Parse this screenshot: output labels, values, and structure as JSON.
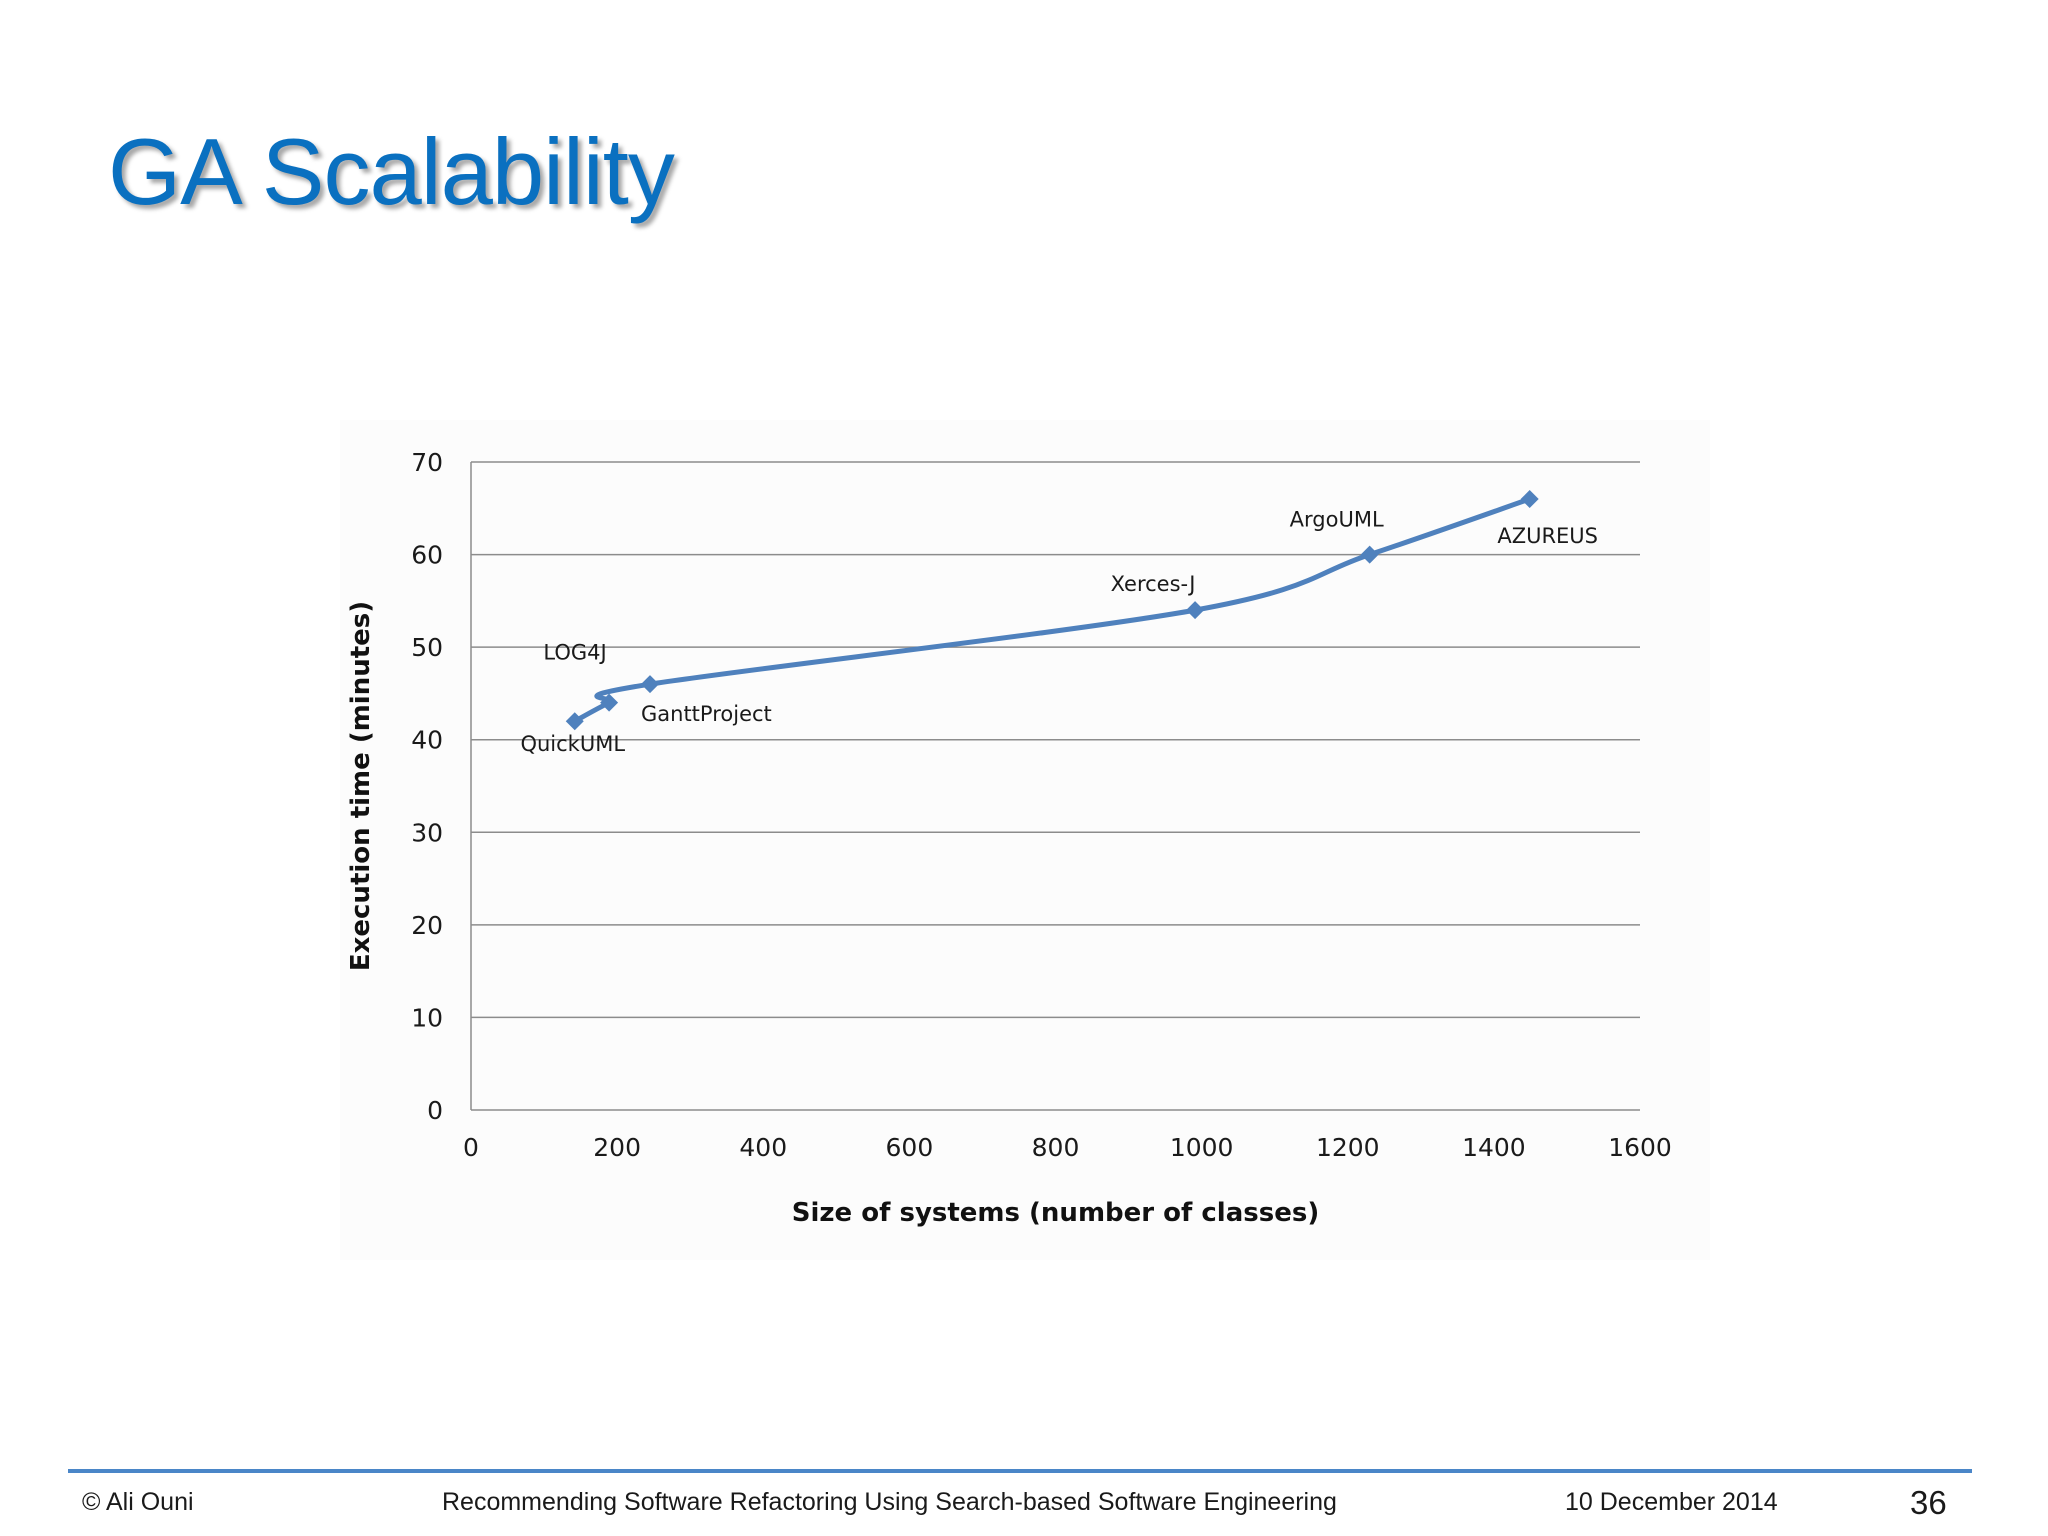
{
  "slide": {
    "title": "GA Scalability"
  },
  "chart_data": {
    "type": "line",
    "xlabel": "Size of systems (number of classes)",
    "ylabel": "Execution time (minutes)",
    "xlim": [
      0,
      1600
    ],
    "ylim": [
      0,
      70
    ],
    "xticks": [
      0,
      200,
      400,
      600,
      800,
      1000,
      1200,
      1400,
      1600
    ],
    "yticks": [
      0,
      10,
      20,
      30,
      40,
      50,
      60,
      70
    ],
    "grid": "horizontal",
    "legend": "none",
    "line_color": "#4f81bd",
    "points": [
      {
        "label": "QuickUML",
        "x": 142,
        "y": 42
      },
      {
        "label": "LOG4J",
        "x": 189,
        "y": 44
      },
      {
        "label": "GanttProject",
        "x": 245,
        "y": 46
      },
      {
        "label": "Xerces-J",
        "x": 991,
        "y": 54
      },
      {
        "label": "ArgoUML",
        "x": 1230,
        "y": 60
      },
      {
        "label": "AZUREUS",
        "x": 1449,
        "y": 66
      }
    ]
  },
  "footer": {
    "author": "© Ali Ouni",
    "presentation_title": "Recommending Software Refactoring Using Search-based Software Engineering",
    "date": "10 December 2014",
    "page_number": "36"
  }
}
